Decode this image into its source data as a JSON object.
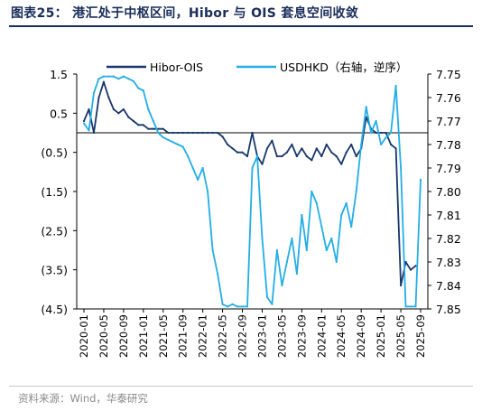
{
  "title": "图表25： 港汇处于中枢区间，Hibor 与 OIS 套息空间收敛",
  "source": "资料来源：Wind，华泰研究",
  "colors": {
    "hibor_ois": "#17376b",
    "usdhkd": "#23aee6",
    "axis": "#000000",
    "title": "#1a2e5a"
  },
  "chart_data": {
    "type": "line",
    "grid": false,
    "legend_position": "top",
    "y_left": {
      "ticks": [
        "1.5",
        "0.5",
        "(0.5)",
        "(1.5)",
        "(2.5)",
        "(3.5)",
        "(4.5)"
      ],
      "tick_values": [
        1.5,
        0.5,
        -0.5,
        -1.5,
        -2.5,
        -3.5,
        -4.5
      ],
      "range": [
        -4.5,
        1.5
      ]
    },
    "y_right": {
      "ticks": [
        "7.75",
        "7.76",
        "7.77",
        "7.78",
        "7.79",
        "7.80",
        "7.81",
        "7.82",
        "7.83",
        "7.84",
        "7.85"
      ],
      "tick_values": [
        7.75,
        7.76,
        7.77,
        7.78,
        7.79,
        7.8,
        7.81,
        7.82,
        7.83,
        7.84,
        7.85
      ],
      "range": [
        7.75,
        7.85
      ],
      "inverted": true
    },
    "x_ticks": [
      "2020-01",
      "2020-05",
      "2020-09",
      "2021-01",
      "2021-05",
      "2021-09",
      "2022-01",
      "2022-05",
      "2022-09",
      "2023-01",
      "2023-05",
      "2023-09",
      "2024-01",
      "2024-05",
      "2024-09",
      "2025-01",
      "2025-05",
      "2025-09"
    ],
    "series": [
      {
        "name": "Hibor-OIS",
        "axis": "left",
        "points": [
          [
            "2020-01",
            0.3
          ],
          [
            "2020-02",
            0.6
          ],
          [
            "2020-03",
            0.0
          ],
          [
            "2020-04",
            0.9
          ],
          [
            "2020-05",
            1.3
          ],
          [
            "2020-06",
            0.9
          ],
          [
            "2020-07",
            0.6
          ],
          [
            "2020-08",
            0.5
          ],
          [
            "2020-09",
            0.6
          ],
          [
            "2020-10",
            0.4
          ],
          [
            "2020-11",
            0.3
          ],
          [
            "2020-12",
            0.2
          ],
          [
            "2021-01",
            0.2
          ],
          [
            "2021-02",
            0.1
          ],
          [
            "2021-03",
            0.1
          ],
          [
            "2021-04",
            0.1
          ],
          [
            "2021-05",
            0.1
          ],
          [
            "2021-06",
            0.0
          ],
          [
            "2021-07",
            0.0
          ],
          [
            "2021-08",
            0.0
          ],
          [
            "2021-09",
            0.0
          ],
          [
            "2021-10",
            0.0
          ],
          [
            "2021-11",
            0.0
          ],
          [
            "2021-12",
            0.0
          ],
          [
            "2022-01",
            0.0
          ],
          [
            "2022-02",
            0.0
          ],
          [
            "2022-03",
            0.0
          ],
          [
            "2022-04",
            0.0
          ],
          [
            "2022-05",
            -0.1
          ],
          [
            "2022-06",
            -0.3
          ],
          [
            "2022-07",
            -0.4
          ],
          [
            "2022-08",
            -0.5
          ],
          [
            "2022-09",
            -0.5
          ],
          [
            "2022-10",
            -0.6
          ],
          [
            "2022-11",
            0.0
          ],
          [
            "2022-12",
            -0.6
          ],
          [
            "2023-01",
            -0.8
          ],
          [
            "2023-02",
            -0.4
          ],
          [
            "2023-03",
            -0.2
          ],
          [
            "2023-04",
            -0.6
          ],
          [
            "2023-05",
            -0.6
          ],
          [
            "2023-06",
            -0.5
          ],
          [
            "2023-07",
            -0.3
          ],
          [
            "2023-08",
            -0.6
          ],
          [
            "2023-09",
            -0.4
          ],
          [
            "2023-10",
            -0.6
          ],
          [
            "2023-11",
            -0.7
          ],
          [
            "2023-12",
            -0.4
          ],
          [
            "2024-01",
            -0.6
          ],
          [
            "2024-02",
            -0.3
          ],
          [
            "2024-03",
            -0.5
          ],
          [
            "2024-04",
            -0.6
          ],
          [
            "2024-05",
            -0.8
          ],
          [
            "2024-06",
            -0.5
          ],
          [
            "2024-07",
            -0.3
          ],
          [
            "2024-08",
            -0.6
          ],
          [
            "2024-09",
            -0.4
          ],
          [
            "2024-10",
            0.4
          ],
          [
            "2024-11",
            0.1
          ],
          [
            "2024-12",
            0.0
          ],
          [
            "2025-01",
            0.0
          ],
          [
            "2025-02",
            0.0
          ],
          [
            "2025-03",
            -0.3
          ],
          [
            "2025-04",
            -0.4
          ],
          [
            "2025-05",
            -3.9
          ],
          [
            "2025-06",
            -3.3
          ],
          [
            "2025-07",
            -3.5
          ],
          [
            "2025-08",
            -3.4
          ]
        ]
      },
      {
        "name": "USDHKD（右轴，逆序）",
        "axis": "right",
        "points": [
          [
            "2020-01",
            7.771
          ],
          [
            "2020-02",
            7.774
          ],
          [
            "2020-03",
            7.758
          ],
          [
            "2020-04",
            7.752
          ],
          [
            "2020-05",
            7.751
          ],
          [
            "2020-06",
            7.751
          ],
          [
            "2020-07",
            7.751
          ],
          [
            "2020-08",
            7.752
          ],
          [
            "2020-09",
            7.751
          ],
          [
            "2020-10",
            7.752
          ],
          [
            "2020-11",
            7.753
          ],
          [
            "2020-12",
            7.756
          ],
          [
            "2021-01",
            7.757
          ],
          [
            "2021-02",
            7.765
          ],
          [
            "2021-03",
            7.77
          ],
          [
            "2021-04",
            7.775
          ],
          [
            "2021-05",
            7.777
          ],
          [
            "2021-06",
            7.778
          ],
          [
            "2021-07",
            7.779
          ],
          [
            "2021-08",
            7.78
          ],
          [
            "2021-09",
            7.781
          ],
          [
            "2021-10",
            7.785
          ],
          [
            "2021-11",
            7.79
          ],
          [
            "2021-12",
            7.795
          ],
          [
            "2022-01",
            7.79
          ],
          [
            "2022-02",
            7.8
          ],
          [
            "2022-03",
            7.825
          ],
          [
            "2022-04",
            7.835
          ],
          [
            "2022-05",
            7.848
          ],
          [
            "2022-06",
            7.849
          ],
          [
            "2022-07",
            7.848
          ],
          [
            "2022-08",
            7.849
          ],
          [
            "2022-09",
            7.849
          ],
          [
            "2022-10",
            7.849
          ],
          [
            "2022-11",
            7.79
          ],
          [
            "2022-12",
            7.785
          ],
          [
            "2023-01",
            7.82
          ],
          [
            "2023-02",
            7.845
          ],
          [
            "2023-03",
            7.848
          ],
          [
            "2023-04",
            7.825
          ],
          [
            "2023-05",
            7.84
          ],
          [
            "2023-06",
            7.83
          ],
          [
            "2023-07",
            7.82
          ],
          [
            "2023-08",
            7.835
          ],
          [
            "2023-09",
            7.81
          ],
          [
            "2023-10",
            7.825
          ],
          [
            "2023-11",
            7.8
          ],
          [
            "2023-12",
            7.805
          ],
          [
            "2024-01",
            7.815
          ],
          [
            "2024-02",
            7.825
          ],
          [
            "2024-03",
            7.82
          ],
          [
            "2024-04",
            7.83
          ],
          [
            "2024-05",
            7.81
          ],
          [
            "2024-06",
            7.805
          ],
          [
            "2024-07",
            7.815
          ],
          [
            "2024-08",
            7.8
          ],
          [
            "2024-09",
            7.78
          ],
          [
            "2024-10",
            7.764
          ],
          [
            "2024-11",
            7.775
          ],
          [
            "2024-12",
            7.77
          ],
          [
            "2025-01",
            7.78
          ],
          [
            "2025-02",
            7.777
          ],
          [
            "2025-03",
            7.775
          ],
          [
            "2025-04",
            7.755
          ],
          [
            "2025-05",
            7.79
          ],
          [
            "2025-06",
            7.849
          ],
          [
            "2025-07",
            7.849
          ],
          [
            "2025-08",
            7.849
          ],
          [
            "2025-09",
            7.795
          ]
        ]
      }
    ]
  }
}
